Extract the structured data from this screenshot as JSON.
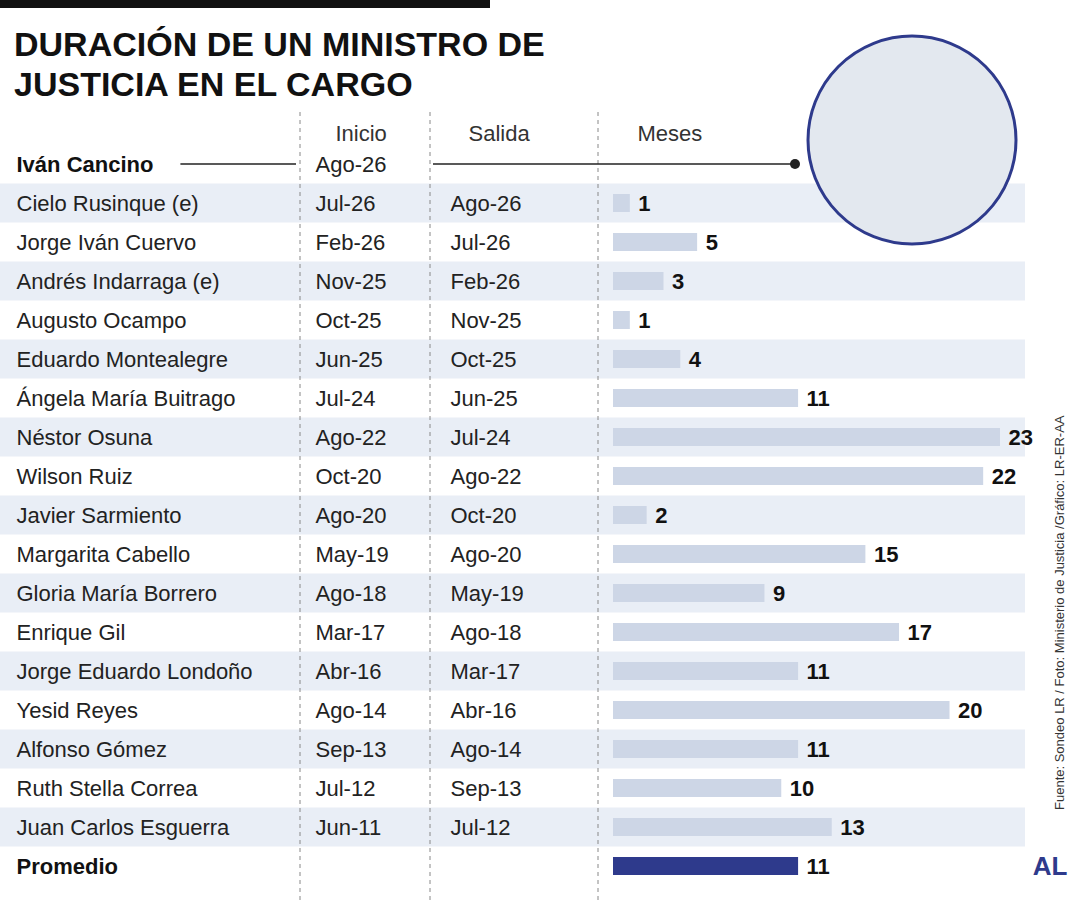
{
  "chart_data": {
    "type": "bar",
    "orientation": "horizontal",
    "title": "DURACIÓN DE UN MINISTRO DE JUSTICIA EN EL CARGO",
    "columns": [
      "Inicio",
      "Salida",
      "Meses"
    ],
    "categories": [
      "Iván Cancino",
      "Cielo Rusinque (e)",
      "Jorge Iván Cuervo",
      "Andrés Indarraga (e)",
      "Augusto Ocampo",
      "Eduardo Montealegre",
      "Ángela María Buitrago",
      "Néstor Osuna",
      "Wilson Ruiz",
      "Javier Sarmiento",
      "Margarita Cabello",
      "Gloria María Borrero",
      "Enrique Gil",
      "Jorge Eduardo Londoño",
      "Yesid Reyes",
      "Alfonso Gómez",
      "Ruth Stella Correa",
      "Juan Carlos Esguerra"
    ],
    "start": [
      "Ago-26",
      "Jul-26",
      "Feb-26",
      "Nov-25",
      "Oct-25",
      "Jun-25",
      "Jul-24",
      "Ago-22",
      "Oct-20",
      "Ago-20",
      "May-19",
      "Ago-18",
      "Mar-17",
      "Abr-16",
      "Ago-14",
      "Sep-13",
      "Jul-12",
      "Jun-11"
    ],
    "end": [
      null,
      "Ago-26",
      "Jul-26",
      "Feb-26",
      "Nov-25",
      "Oct-25",
      "Jun-25",
      "Jul-24",
      "Ago-22",
      "Oct-20",
      "Ago-20",
      "May-19",
      "Ago-18",
      "Mar-17",
      "Abr-16",
      "Ago-14",
      "Sep-13",
      "Jul-12"
    ],
    "values": [
      null,
      1,
      5,
      3,
      1,
      4,
      11,
      23,
      22,
      2,
      15,
      9,
      17,
      11,
      20,
      11,
      10,
      13
    ],
    "color": "#cdd6e6",
    "average": {
      "label": "Promedio",
      "value": 11,
      "color": "#2e3a8c"
    },
    "xlim": [
      0,
      23
    ],
    "xticks": [],
    "tick_labels": false,
    "data_labels": true,
    "grid": false,
    "source": "Fuente: Sondeo LR / Foto: Ministerio de Justicia /Gráfico: LR-ER-AA",
    "logo": "AL"
  }
}
